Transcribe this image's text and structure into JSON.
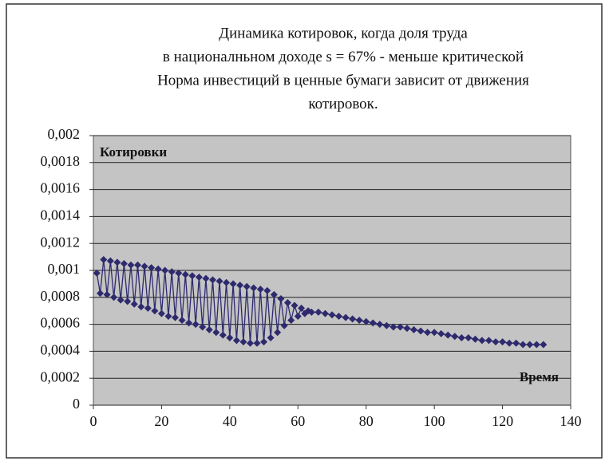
{
  "chart_data": {
    "type": "line",
    "title": [
      "Динамика котировок, когда доля труда",
      "в националньном доходе s = 67% - меньше критической",
      "Норма инвестиций в ценные бумаги зависит от движения",
      "котировок."
    ],
    "annotations": [
      "Котировки",
      "Время"
    ],
    "x": [
      1,
      2,
      3,
      4,
      5,
      6,
      7,
      8,
      9,
      10,
      11,
      12,
      13,
      14,
      15,
      16,
      17,
      18,
      19,
      20,
      21,
      22,
      23,
      24,
      25,
      26,
      27,
      28,
      29,
      30,
      31,
      32,
      33,
      34,
      35,
      36,
      37,
      38,
      39,
      40,
      41,
      42,
      43,
      44,
      45,
      46,
      47,
      48,
      49,
      50,
      51,
      52,
      53,
      54,
      55,
      56,
      57,
      58,
      59,
      60,
      61,
      62,
      63,
      64,
      66,
      68,
      70,
      72,
      74,
      76,
      78,
      80,
      82,
      84,
      86,
      88,
      90,
      92,
      94,
      96,
      98,
      100,
      102,
      104,
      106,
      108,
      110,
      112,
      114,
      116,
      118,
      120,
      122,
      124,
      126,
      128,
      130,
      132
    ],
    "series": [
      {
        "name": "Котировки",
        "color": "#2e2a6e",
        "values": [
          0.00098,
          0.00083,
          0.00108,
          0.00082,
          0.00107,
          0.0008,
          0.00106,
          0.00078,
          0.00105,
          0.00077,
          0.00104,
          0.00075,
          0.00104,
          0.00073,
          0.00103,
          0.00072,
          0.00102,
          0.0007,
          0.00101,
          0.00068,
          0.001,
          0.00066,
          0.00099,
          0.00065,
          0.00098,
          0.00063,
          0.00097,
          0.00061,
          0.00096,
          0.0006,
          0.00095,
          0.00058,
          0.00094,
          0.00056,
          0.00093,
          0.00054,
          0.00092,
          0.00052,
          0.00091,
          0.0005,
          0.0009,
          0.00048,
          0.00089,
          0.00047,
          0.00088,
          0.00046,
          0.00087,
          0.00046,
          0.00086,
          0.00047,
          0.00085,
          0.0005,
          0.00082,
          0.00054,
          0.00079,
          0.00059,
          0.00076,
          0.00063,
          0.00074,
          0.00066,
          0.00072,
          0.00068,
          0.0007,
          0.00069,
          0.00069,
          0.00068,
          0.00067,
          0.00066,
          0.00065,
          0.00064,
          0.00063,
          0.00062,
          0.00061,
          0.0006,
          0.00059,
          0.00058,
          0.00058,
          0.00057,
          0.00056,
          0.00055,
          0.00054,
          0.00054,
          0.00053,
          0.00052,
          0.00051,
          0.0005,
          0.0005,
          0.00049,
          0.00048,
          0.00048,
          0.00047,
          0.00047,
          0.00046,
          0.00046,
          0.00045,
          0.00045,
          0.00045,
          0.00045
        ]
      }
    ],
    "xlim": [
      0,
      140
    ],
    "xticks": [
      0,
      20,
      40,
      60,
      80,
      100,
      120,
      140
    ],
    "ylim": [
      0,
      0.002
    ],
    "yticks": [
      0,
      {
        "value": 0.0002,
        "label": "0,0002"
      },
      {
        "value": 0.0004,
        "label": "0,0004"
      },
      {
        "value": 0.0006,
        "label": "0,0006"
      },
      {
        "value": 0.0008,
        "label": "0,0008"
      },
      {
        "value": 0.001,
        "label": "0,001"
      },
      {
        "value": 0.0012,
        "label": "0,0012"
      },
      {
        "value": 0.0014,
        "label": "0,0014"
      },
      {
        "value": 0.0016,
        "label": "0,0016"
      },
      {
        "value": 0.0018,
        "label": "0,0018"
      },
      {
        "value": 0.002,
        "label": "0,002"
      }
    ],
    "grid": true
  }
}
